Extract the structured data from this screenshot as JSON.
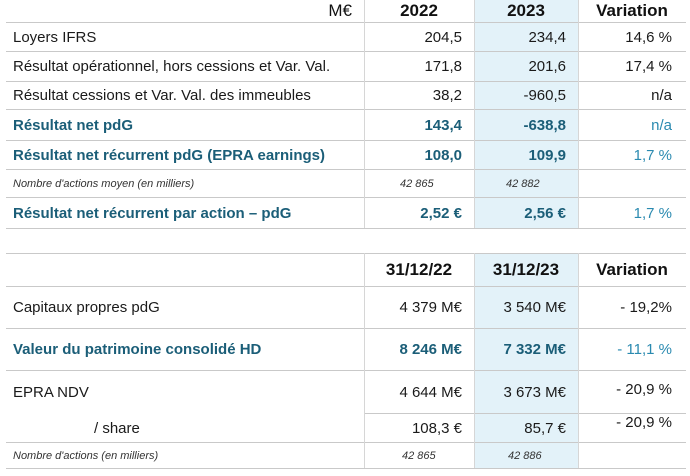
{
  "table1": {
    "header": {
      "unit": "M€",
      "col1": "2022",
      "col2": "2023",
      "col3": "Variation"
    },
    "rows": [
      {
        "label": "Loyers IFRS",
        "v1": "204,5",
        "v2": "234,4",
        "v3": "14,6 %"
      },
      {
        "label": "Résultat opérationnel, hors cessions et Var. Val.",
        "v1": "171,8",
        "v2": "201,6",
        "v3": "17,4 %"
      },
      {
        "label": "Résultat cessions et Var. Val. des immeubles",
        "v1": "38,2",
        "v2": "-960,5",
        "v3": "n/a"
      },
      {
        "label": "Résultat net pdG",
        "v1": "143,4",
        "v2": "-638,8",
        "v3": "n/a"
      },
      {
        "label": "Résultat net récurrent pdG  (EPRA earnings)",
        "v1": "108,0",
        "v2": "109,9",
        "v3": "1,7 %"
      },
      {
        "label": "Nombre d'actions moyen (en milliers)",
        "v1": "42 865",
        "v2": "42 882",
        "v3": ""
      },
      {
        "label": "Résultat net récurrent par action – pdG",
        "v1": "2,52 €",
        "v2": "2,56 €",
        "v3": "1,7 %"
      }
    ]
  },
  "table2": {
    "header": {
      "col1": "31/12/22",
      "col2": "31/12/23",
      "col3": "Variation"
    },
    "rows": [
      {
        "label": "Capitaux propres pdG",
        "v1": "4 379 M€",
        "v2": "3 540 M€",
        "v3": "- 19,2%"
      },
      {
        "label": "Valeur du patrimoine consolidé HD",
        "v1": "8 246 M€",
        "v2": "7 332 M€",
        "v3": "- 11,1 %"
      },
      {
        "label": "EPRA NDV",
        "v1": "4 644 M€",
        "v2": "3 673 M€",
        "v3": "- 20,9 %"
      },
      {
        "label": "/ share",
        "v1": "108,3 €",
        "v2": "85,7 €",
        "v3": "- 20,9 %"
      },
      {
        "label": "Nombre d'actions (en milliers)",
        "v1": "42 865",
        "v2": "42 886",
        "v3": ""
      }
    ]
  }
}
